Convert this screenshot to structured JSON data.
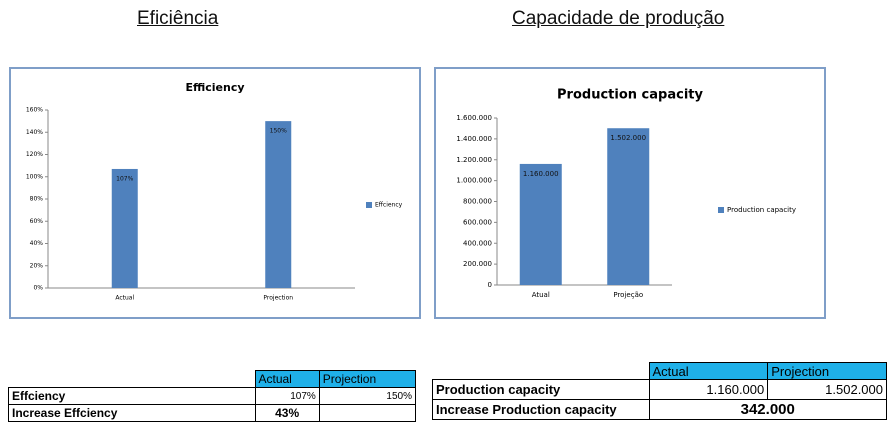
{
  "headings": [
    "Eficiência",
    "Capacidade de produção"
  ],
  "chart_data": [
    {
      "type": "bar",
      "title": "Efficiency",
      "categories": [
        "Actual",
        "Projection"
      ],
      "series": [
        {
          "name": "Effciency",
          "color": "#4f81bd",
          "values": [
            107,
            150
          ],
          "value_labels": [
            "107%",
            "150%"
          ]
        }
      ],
      "ylim": [
        0,
        160
      ],
      "yticks": [
        {
          "value": 0,
          "label": "0%"
        },
        {
          "value": 20,
          "label": "20%"
        },
        {
          "value": 40,
          "label": "40%"
        },
        {
          "value": 60,
          "label": "60%"
        },
        {
          "value": 80,
          "label": "80%"
        },
        {
          "value": 100,
          "label": "100%"
        },
        {
          "value": 120,
          "label": "120%"
        },
        {
          "value": 140,
          "label": "140%"
        },
        {
          "value": 160,
          "label": "160%"
        }
      ],
      "grid": false,
      "legend": "right"
    },
    {
      "type": "bar",
      "title": "Production capacity",
      "categories": [
        "Atual",
        "Projeção"
      ],
      "series": [
        {
          "name": "Production capacity",
          "color": "#4f81bd",
          "values": [
            1160000,
            1502000
          ],
          "value_labels": [
            "1.160.000",
            "1.502.000"
          ]
        }
      ],
      "ylim": [
        0,
        1600000
      ],
      "yticks": [
        0,
        {
          "value": 200000,
          "label": "200.000"
        },
        {
          "value": 400000,
          "label": "400.000"
        },
        {
          "value": 600000,
          "label": "600.000"
        },
        {
          "value": 800000,
          "label": "800.000"
        },
        {
          "value": 1000000,
          "label": "1.000.000"
        },
        {
          "value": 1200000,
          "label": "1.200.000"
        },
        {
          "value": 1400000,
          "label": "1.400.000"
        },
        {
          "value": 1600000,
          "label": "1.600.000"
        }
      ],
      "grid": false,
      "legend": "right"
    }
  ],
  "tables": [
    {
      "columns": [
        "Actual",
        "Projection"
      ],
      "rows": [
        {
          "label": "Effciency",
          "cells": [
            "107%",
            "150%"
          ]
        },
        {
          "label": "Increase Effciency",
          "cells": [
            "43%"
          ]
        }
      ]
    },
    {
      "columns": [
        "Actual",
        "Projection"
      ],
      "rows": [
        {
          "label": "Production capacity",
          "cells": [
            "1.160.000",
            "1.502.000"
          ]
        },
        {
          "label": "Increase Production capacity",
          "cells": [
            "342.000"
          ]
        }
      ]
    }
  ]
}
